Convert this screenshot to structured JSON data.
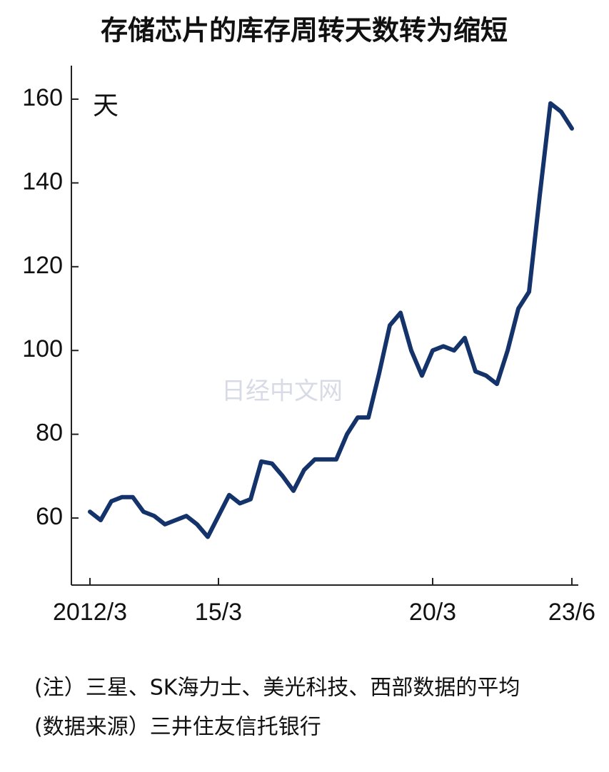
{
  "chart_data": {
    "type": "line",
    "title": "存储芯片的库存周转天数转为缩短",
    "y_unit": "天",
    "watermark": "日经中文网",
    "notes": [
      "(注）三星、SK海力士、美光科技、西部数据的平均",
      "(数据来源）三井住友信托银行"
    ],
    "categories": [
      "2012/3",
      null,
      null,
      null,
      null,
      null,
      null,
      null,
      null,
      null,
      null,
      null,
      "15/3",
      null,
      null,
      null,
      null,
      null,
      null,
      null,
      null,
      null,
      null,
      null,
      null,
      null,
      null,
      null,
      null,
      null,
      null,
      null,
      "20/3",
      null,
      null,
      null,
      null,
      null,
      null,
      null,
      null,
      null,
      null,
      null,
      null,
      "23/6"
    ],
    "values": [
      61.5,
      59.5,
      64,
      65,
      65,
      61.5,
      60.5,
      58.5,
      59.5,
      60.5,
      58.5,
      55.5,
      60.5,
      65.5,
      63.5,
      64.5,
      73.5,
      73,
      70,
      66.5,
      71.5,
      74,
      74,
      74,
      80,
      84,
      84,
      94.5,
      106,
      109,
      100,
      94,
      100,
      101,
      100,
      103,
      95,
      94,
      92,
      100,
      110,
      114,
      137,
      159,
      157,
      153
    ],
    "color": "#14336b",
    "ylim": [
      44,
      168
    ],
    "yticks": [
      60,
      80,
      100,
      120,
      140,
      160
    ]
  }
}
